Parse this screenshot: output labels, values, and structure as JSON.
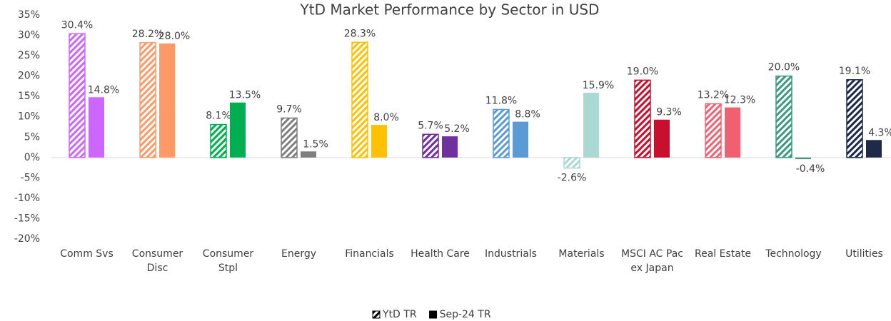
{
  "chart_data": {
    "type": "bar",
    "title": "YtD Market Performance by Sector in USD",
    "categories": [
      "Comm Svs",
      "Consumer Disc",
      "Consumer Stpl",
      "Energy",
      "Financials",
      "Health Care",
      "Industrials",
      "Materials",
      "MSCI AC Pac ex Japan",
      "Real Estate",
      "Technology",
      "Utilities"
    ],
    "colors": [
      "#cc66ff",
      "#ff9966",
      "#00b050",
      "#7f7f7f",
      "#ffc000",
      "#7030a0",
      "#5b9bd5",
      "#a9d9d0",
      "#c8102e",
      "#f06070",
      "#3a9a80",
      "#1f2a4a"
    ],
    "series": [
      {
        "name": "YtD TR",
        "pattern": "hatch",
        "values": [
          30.4,
          28.2,
          8.1,
          9.7,
          28.3,
          5.7,
          11.8,
          -2.6,
          19.0,
          13.2,
          20.0,
          19.1
        ],
        "value_labels": [
          "30.4%",
          "28.2%",
          "8.1%",
          "9.7%",
          "28.3%",
          "5.7%",
          "11.8%",
          "-2.6%",
          "19.0%",
          "13.2%",
          "20.0%",
          "19.1%"
        ]
      },
      {
        "name": "Sep-24 TR",
        "pattern": "solid",
        "values": [
          14.8,
          28.0,
          13.5,
          1.5,
          8.0,
          5.2,
          8.8,
          15.9,
          9.3,
          12.3,
          -0.4,
          4.3
        ],
        "value_labels": [
          "14.8%",
          "28.0%",
          "13.5%",
          "1.5%",
          "8.0%",
          "5.2%",
          "8.8%",
          "15.9%",
          "9.3%",
          "12.3%",
          "-0.4%",
          "4.3%"
        ]
      }
    ],
    "ylim": [
      -20,
      35
    ],
    "yticks": [
      {
        "value": -20,
        "label": "-20%"
      },
      {
        "value": -15,
        "label": "-15%"
      },
      {
        "value": -10,
        "label": "-10%"
      },
      {
        "value": -5,
        "label": "-5%"
      },
      {
        "value": 0,
        "label": "0%"
      },
      {
        "value": 5,
        "label": "5%"
      },
      {
        "value": 10,
        "label": "10%"
      },
      {
        "value": 15,
        "label": "15%"
      },
      {
        "value": 20,
        "label": "20%"
      },
      {
        "value": 25,
        "label": "25%"
      },
      {
        "value": 30,
        "label": "30%"
      },
      {
        "value": 35,
        "label": "35%"
      }
    ],
    "grid": false,
    "legend": "bottom"
  }
}
